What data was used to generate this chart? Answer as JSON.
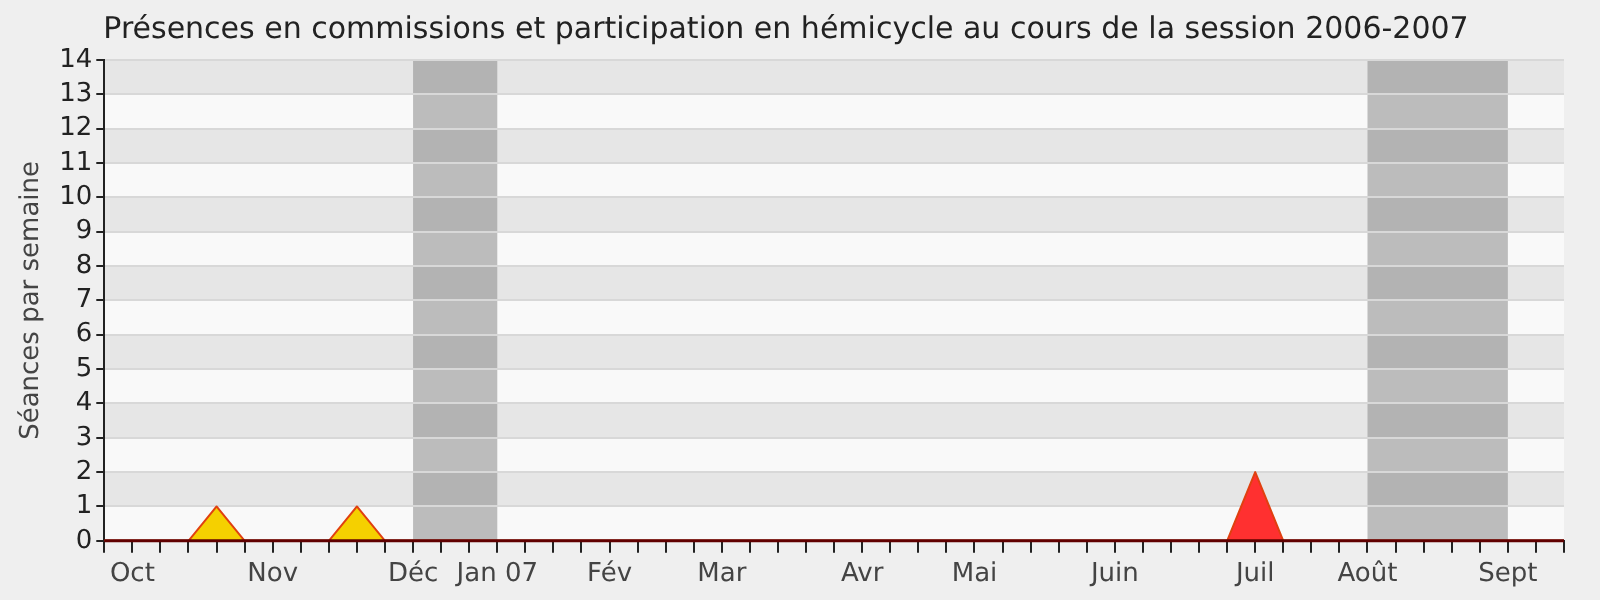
{
  "chart_data": {
    "type": "area",
    "title": "Présences en commissions et participation en hémicycle au cours de la session 2006-2007",
    "ylabel": "Séances par semaine",
    "categories": [
      null,
      "Oct",
      null,
      null,
      null,
      null,
      "Nov",
      null,
      null,
      null,
      null,
      "Déc",
      null,
      null,
      "Jan 07",
      null,
      null,
      null,
      "Fév",
      null,
      null,
      null,
      "Mar",
      null,
      null,
      null,
      null,
      "Avr",
      null,
      null,
      null,
      "Mai",
      null,
      null,
      null,
      null,
      "Juin",
      null,
      null,
      null,
      null,
      "Juil",
      null,
      null,
      null,
      "Août",
      null,
      null,
      null,
      null,
      "Sept",
      null,
      null
    ],
    "series": [
      {
        "color": "#f5d000",
        "values": [
          0,
          0,
          0,
          0,
          1,
          0,
          0,
          0,
          0,
          1,
          0,
          0,
          0,
          0,
          0,
          0,
          0,
          0,
          0,
          0,
          0,
          0,
          0,
          0,
          0,
          0,
          0,
          0,
          0,
          0,
          0,
          0,
          0,
          0,
          0,
          0,
          0,
          0,
          0,
          0,
          0,
          0,
          0,
          0,
          0,
          0,
          0,
          0,
          0,
          0,
          0,
          0,
          0
        ]
      },
      {
        "color": "#ff3030",
        "values": [
          0,
          0,
          0,
          0,
          0,
          0,
          0,
          0,
          0,
          0,
          0,
          0,
          0,
          0,
          0,
          0,
          0,
          0,
          0,
          0,
          0,
          0,
          0,
          0,
          0,
          0,
          0,
          0,
          0,
          0,
          0,
          0,
          0,
          0,
          0,
          0,
          0,
          0,
          0,
          0,
          0,
          2,
          0,
          0,
          0,
          0,
          0,
          0,
          0,
          0,
          0,
          0,
          0
        ]
      }
    ],
    "ylim": [
      0,
      14
    ],
    "yticks": [
      0,
      1,
      2,
      3,
      4,
      5,
      6,
      7,
      8,
      9,
      10,
      11,
      12,
      13,
      14
    ],
    "bands": [
      {
        "axis": "x",
        "from": "Déc",
        "to": "Jan 07",
        "color": "#808080"
      },
      {
        "axis": "x",
        "from": "Août",
        "to": "Sept",
        "color": "#808080"
      }
    ],
    "grid": "y",
    "legend": false
  }
}
